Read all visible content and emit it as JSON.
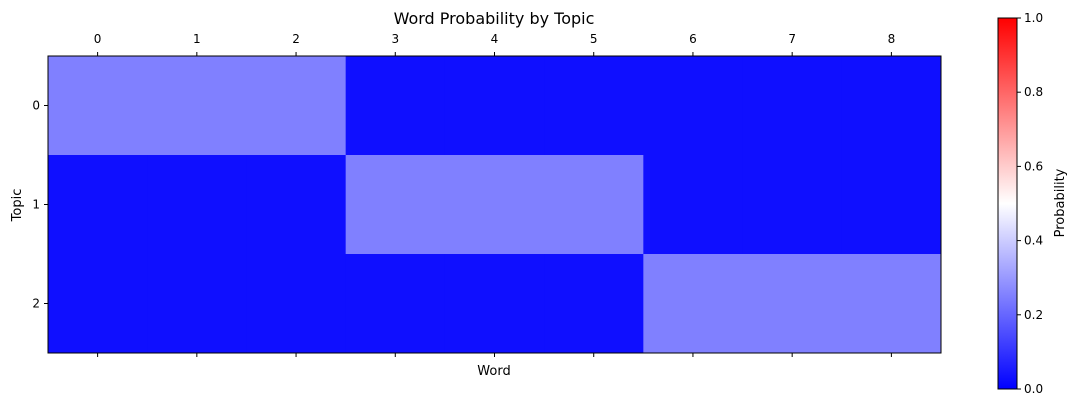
{
  "chart_data": {
    "type": "heatmap",
    "title": "Word Probability by Topic",
    "xlabel": "Word",
    "ylabel": "Topic",
    "x_ticks": [
      "0",
      "1",
      "2",
      "3",
      "4",
      "5",
      "6",
      "7",
      "8"
    ],
    "y_ticks": [
      "0",
      "1",
      "2"
    ],
    "values": [
      [
        0.25,
        0.25,
        0.25,
        0.03,
        0.03,
        0.03,
        0.03,
        0.03,
        0.03
      ],
      [
        0.03,
        0.03,
        0.03,
        0.25,
        0.25,
        0.25,
        0.03,
        0.03,
        0.03
      ],
      [
        0.03,
        0.03,
        0.03,
        0.03,
        0.03,
        0.03,
        0.25,
        0.25,
        0.25
      ]
    ],
    "colorbar": {
      "label": "Probability",
      "range": [
        0,
        1
      ],
      "ticks": [
        "0.0",
        "0.2",
        "0.4",
        "0.6",
        "0.8",
        "1.0"
      ],
      "colors": [
        "#0000ff",
        "#ffffff",
        "#ff0000"
      ]
    },
    "x_ticks_position": "top",
    "grid": false
  }
}
